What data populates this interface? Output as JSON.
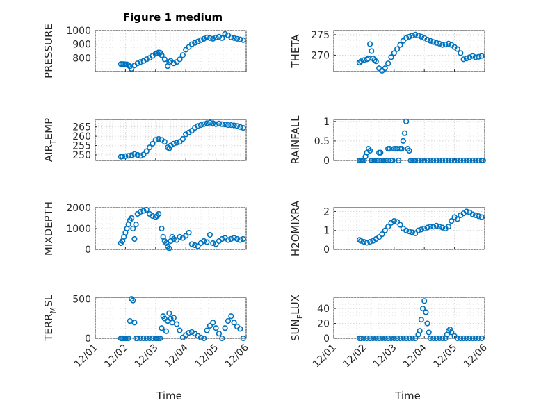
{
  "figure": {
    "title": "Figure 1 medium",
    "xlabel": "Time",
    "x_ticks": [
      "12/01",
      "12/02",
      "12/03",
      "12/04",
      "12/05",
      "12/06"
    ],
    "marker_color": "#0072BD"
  },
  "chart_data": [
    {
      "type": "scatter",
      "ylabel": "PRESSURE",
      "ylim": [
        700,
        1000
      ],
      "yticks": [
        800,
        900,
        1000
      ],
      "grid": true,
      "xlim": [
        0,
        5
      ],
      "x": [
        0.85,
        0.9,
        0.95,
        1.0,
        1.05,
        1.1,
        1.15,
        1.2,
        1.3,
        1.4,
        1.5,
        1.6,
        1.7,
        1.8,
        1.9,
        2.0,
        2.05,
        2.1,
        2.15,
        2.2,
        2.3,
        2.4,
        2.45,
        2.5,
        2.6,
        2.7,
        2.8,
        2.9,
        3.0,
        3.1,
        3.2,
        3.3,
        3.4,
        3.5,
        3.6,
        3.7,
        3.8,
        3.9,
        4.0,
        4.1,
        4.2,
        4.3,
        4.4,
        4.5,
        4.6,
        4.7,
        4.8,
        4.9
      ],
      "y": [
        755,
        755,
        754,
        752,
        752,
        745,
        738,
        720,
        745,
        760,
        770,
        778,
        790,
        800,
        815,
        830,
        835,
        840,
        838,
        820,
        790,
        740,
        770,
        778,
        760,
        770,
        790,
        820,
        860,
        880,
        900,
        910,
        920,
        930,
        940,
        950,
        945,
        940,
        950,
        955,
        945,
        975,
        965,
        950,
        945,
        940,
        935,
        930
      ]
    },
    {
      "type": "scatter",
      "ylabel": "THETA",
      "ylim": [
        266,
        276
      ],
      "yticks": [
        270,
        275
      ],
      "grid": true,
      "xlim": [
        0,
        5
      ],
      "x": [
        0.85,
        0.9,
        1.0,
        1.1,
        1.15,
        1.2,
        1.25,
        1.3,
        1.35,
        1.4,
        1.5,
        1.6,
        1.7,
        1.8,
        1.9,
        2.0,
        2.1,
        2.2,
        2.3,
        2.4,
        2.5,
        2.6,
        2.7,
        2.8,
        2.9,
        3.0,
        3.1,
        3.2,
        3.3,
        3.4,
        3.5,
        3.6,
        3.7,
        3.8,
        3.9,
        4.0,
        4.1,
        4.2,
        4.3,
        4.4,
        4.5,
        4.6,
        4.7,
        4.8,
        4.9
      ],
      "y": [
        268.2,
        268.5,
        268.8,
        269.0,
        269.2,
        272.7,
        271.0,
        269.2,
        268.8,
        268.5,
        266.8,
        266.2,
        266.8,
        268.0,
        269.5,
        270.5,
        271.5,
        272.5,
        273.5,
        274.2,
        274.5,
        274.8,
        275.0,
        274.8,
        274.5,
        274.2,
        273.8,
        273.5,
        273.2,
        273.0,
        272.8,
        272.5,
        272.6,
        272.8,
        272.5,
        272.0,
        271.5,
        270.5,
        269.0,
        269.2,
        269.5,
        269.8,
        269.5,
        269.6,
        269.8
      ]
    },
    {
      "type": "scatter",
      "ylabel": "AIR_TEMP",
      "ylim": [
        247,
        269
      ],
      "yticks": [
        250,
        255,
        260,
        265
      ],
      "grid": true,
      "xlim": [
        0,
        5
      ],
      "x": [
        0.85,
        0.9,
        1.0,
        1.1,
        1.2,
        1.3,
        1.4,
        1.5,
        1.6,
        1.7,
        1.8,
        1.9,
        2.0,
        2.1,
        2.2,
        2.3,
        2.4,
        2.45,
        2.5,
        2.6,
        2.7,
        2.8,
        2.9,
        3.0,
        3.1,
        3.2,
        3.3,
        3.4,
        3.5,
        3.6,
        3.7,
        3.8,
        3.9,
        4.0,
        4.1,
        4.2,
        4.3,
        4.4,
        4.5,
        4.6,
        4.7,
        4.8,
        4.9
      ],
      "y": [
        249.0,
        249.2,
        249.3,
        249.5,
        249.8,
        250.5,
        250.0,
        249.5,
        250.2,
        252.0,
        254.0,
        256.0,
        258.0,
        258.5,
        258.0,
        257.0,
        254.0,
        253.5,
        255.0,
        256.0,
        256.5,
        257.0,
        258.5,
        261.0,
        262.0,
        263.0,
        264.5,
        265.5,
        266.0,
        266.5,
        267.0,
        267.3,
        267.0,
        266.5,
        266.8,
        266.5,
        266.3,
        266.0,
        266.0,
        265.8,
        265.5,
        265.0,
        264.5
      ]
    },
    {
      "type": "scatter",
      "ylabel": "RAINFALL",
      "ylim": [
        0,
        1.05
      ],
      "yticks": [
        0,
        0.5,
        1
      ],
      "grid": true,
      "xlim": [
        0,
        5
      ],
      "x": [
        0.85,
        0.9,
        0.95,
        1.0,
        1.05,
        1.1,
        1.15,
        1.2,
        1.25,
        1.3,
        1.35,
        1.4,
        1.45,
        1.5,
        1.55,
        1.6,
        1.65,
        1.7,
        1.75,
        1.8,
        1.85,
        1.9,
        1.95,
        2.0,
        2.05,
        2.1,
        2.15,
        2.2,
        2.25,
        2.3,
        2.35,
        2.4,
        2.45,
        2.5,
        2.55,
        2.6,
        2.65,
        2.7,
        2.8,
        2.9,
        3.0,
        3.1,
        3.2,
        3.3,
        3.4,
        3.5,
        3.6,
        3.7,
        3.8,
        3.9,
        4.0,
        4.1,
        4.2,
        4.3,
        4.4,
        4.5,
        4.6,
        4.7,
        4.8,
        4.9,
        4.95
      ],
      "y": [
        0,
        0,
        0,
        0,
        0.1,
        0.2,
        0.3,
        0.25,
        0,
        0,
        0,
        0,
        0,
        0.2,
        0.2,
        0,
        0,
        0,
        0,
        0.3,
        0.3,
        0,
        0,
        0.3,
        0.3,
        0.3,
        0,
        0.3,
        0.3,
        0.5,
        0.7,
        1.0,
        0.3,
        0.25,
        0,
        0,
        0,
        0,
        0,
        0,
        0,
        0,
        0,
        0,
        0,
        0,
        0,
        0,
        0,
        0,
        0,
        0,
        0,
        0,
        0,
        0,
        0,
        0,
        0,
        0,
        0
      ]
    },
    {
      "type": "scatter",
      "ylabel": "MIXDEPTH",
      "ylim": [
        0,
        2000
      ],
      "yticks": [
        0,
        1000,
        2000
      ],
      "grid": true,
      "xlim": [
        0,
        5
      ],
      "x": [
        0.85,
        0.9,
        0.95,
        1.0,
        1.05,
        1.1,
        1.15,
        1.2,
        1.25,
        1.3,
        1.35,
        1.4,
        1.5,
        1.6,
        1.7,
        1.8,
        1.9,
        2.0,
        2.05,
        2.1,
        2.2,
        2.25,
        2.3,
        2.35,
        2.4,
        2.45,
        2.5,
        2.55,
        2.6,
        2.7,
        2.8,
        2.9,
        3.0,
        3.1,
        3.2,
        3.3,
        3.4,
        3.5,
        3.6,
        3.7,
        3.8,
        3.9,
        4.0,
        4.1,
        4.2,
        4.3,
        4.4,
        4.5,
        4.6,
        4.7,
        4.8,
        4.9
      ],
      "y": [
        300,
        400,
        600,
        800,
        1000,
        1200,
        1400,
        1500,
        1000,
        500,
        1200,
        1700,
        1800,
        1850,
        1900,
        1700,
        1600,
        1550,
        1600,
        1700,
        1000,
        600,
        400,
        300,
        150,
        50,
        400,
        600,
        500,
        450,
        600,
        550,
        650,
        800,
        250,
        200,
        150,
        300,
        400,
        350,
        700,
        300,
        250,
        400,
        500,
        550,
        450,
        500,
        550,
        500,
        450,
        500
      ]
    },
    {
      "type": "scatter",
      "ylabel": "H2OMIXRA",
      "ylim": [
        0,
        2.2
      ],
      "yticks": [
        0,
        1,
        2
      ],
      "grid": true,
      "xlim": [
        0,
        5
      ],
      "x": [
        0.85,
        0.9,
        1.0,
        1.1,
        1.2,
        1.3,
        1.4,
        1.5,
        1.6,
        1.7,
        1.8,
        1.9,
        2.0,
        2.1,
        2.2,
        2.3,
        2.4,
        2.5,
        2.6,
        2.7,
        2.8,
        2.9,
        3.0,
        3.1,
        3.2,
        3.3,
        3.4,
        3.5,
        3.6,
        3.7,
        3.8,
        3.9,
        4.0,
        4.1,
        4.2,
        4.3,
        4.4,
        4.5,
        4.6,
        4.7,
        4.8,
        4.9
      ],
      "y": [
        0.5,
        0.45,
        0.4,
        0.35,
        0.4,
        0.45,
        0.55,
        0.65,
        0.8,
        1.0,
        1.2,
        1.4,
        1.5,
        1.45,
        1.3,
        1.1,
        1.0,
        0.95,
        0.9,
        0.85,
        1.0,
        1.05,
        1.1,
        1.15,
        1.2,
        1.2,
        1.25,
        1.2,
        1.15,
        1.1,
        1.2,
        1.5,
        1.7,
        1.6,
        1.8,
        1.9,
        2.0,
        1.95,
        1.85,
        1.8,
        1.75,
        1.7
      ]
    },
    {
      "type": "scatter",
      "ylabel": "TERR_MSL",
      "ylim": [
        0,
        520
      ],
      "yticks": [
        0,
        500
      ],
      "grid": true,
      "xlim": [
        0,
        5
      ],
      "x": [
        0.85,
        0.9,
        0.95,
        1.0,
        1.05,
        1.1,
        1.15,
        1.2,
        1.25,
        1.3,
        1.35,
        1.4,
        1.5,
        1.6,
        1.7,
        1.8,
        1.9,
        2.0,
        2.05,
        2.1,
        2.15,
        2.2,
        2.25,
        2.3,
        2.35,
        2.4,
        2.45,
        2.5,
        2.55,
        2.6,
        2.7,
        2.8,
        2.9,
        3.0,
        3.1,
        3.2,
        3.3,
        3.4,
        3.5,
        3.6,
        3.7,
        3.8,
        3.9,
        4.0,
        4.1,
        4.2,
        4.3,
        4.4,
        4.5,
        4.6,
        4.7,
        4.8,
        4.9
      ],
      "y": [
        0,
        0,
        0,
        0,
        0,
        0,
        220,
        500,
        480,
        200,
        0,
        0,
        0,
        0,
        0,
        0,
        0,
        0,
        0,
        0,
        0,
        130,
        280,
        250,
        90,
        220,
        320,
        250,
        200,
        260,
        180,
        100,
        10,
        40,
        70,
        80,
        60,
        30,
        10,
        0,
        100,
        160,
        200,
        130,
        60,
        0,
        130,
        220,
        280,
        200,
        150,
        120,
        0
      ]
    },
    {
      "type": "scatter",
      "ylabel": "SUN_FLUX",
      "ylim": [
        0,
        55
      ],
      "yticks": [
        0,
        20,
        40
      ],
      "grid": true,
      "xlim": [
        0,
        5
      ],
      "x": [
        0.85,
        0.9,
        1.0,
        1.1,
        1.2,
        1.3,
        1.4,
        1.5,
        1.6,
        1.7,
        1.8,
        1.9,
        2.0,
        2.1,
        2.2,
        2.3,
        2.4,
        2.5,
        2.6,
        2.7,
        2.8,
        2.85,
        2.9,
        2.95,
        3.0,
        3.05,
        3.1,
        3.15,
        3.2,
        3.3,
        3.4,
        3.5,
        3.6,
        3.7,
        3.75,
        3.8,
        3.85,
        3.9,
        4.0,
        4.1,
        4.2,
        4.3,
        4.4,
        4.5,
        4.6,
        4.7,
        4.8,
        4.9
      ],
      "y": [
        0,
        0,
        0,
        0,
        0,
        0,
        0,
        0,
        0,
        0,
        0,
        0,
        0,
        0,
        0,
        0,
        0,
        0,
        0,
        0,
        5,
        10,
        25,
        40,
        50,
        35,
        20,
        8,
        0,
        0,
        0,
        0,
        0,
        0,
        5,
        10,
        12,
        8,
        3,
        0,
        0,
        0,
        0,
        0,
        0,
        0,
        0,
        0
      ]
    }
  ]
}
